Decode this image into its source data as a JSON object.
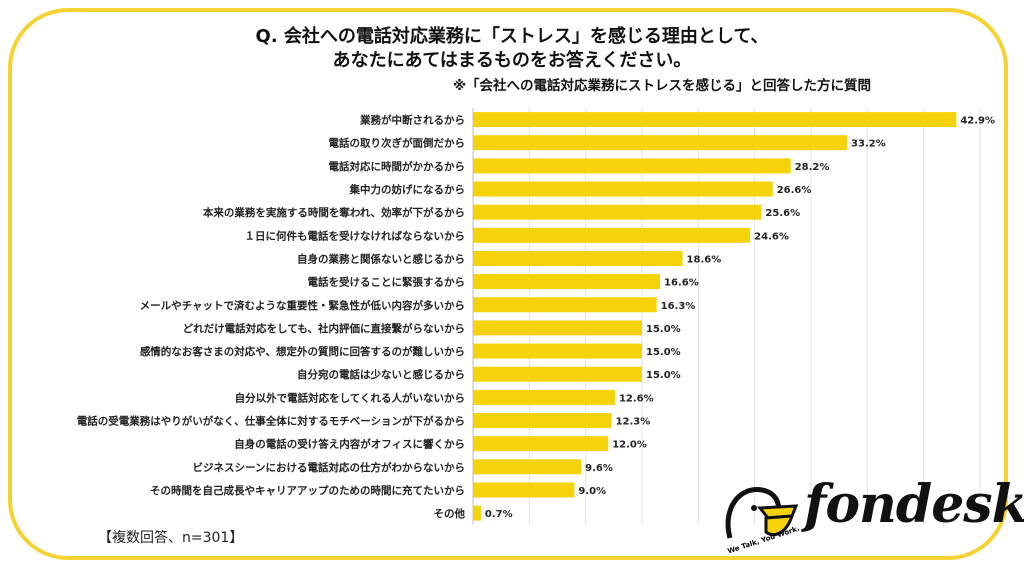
{
  "title_line1": "Q. 会社への電話対応業務に「ストレス」を感じる理由として、",
  "title_line2": "あなたにあてはまるものをお答えください。",
  "subtitle": "※「会社への電話対応業務にストレスを感じる」と回答した方に質問",
  "note": "【複数回答、n=301】",
  "logo": {
    "name": "fondesk",
    "tagline": "We Talk, You Work."
  },
  "chart_data": {
    "type": "bar",
    "orientation": "horizontal",
    "title": "Q. 会社への電話対応業務に「ストレス」を感じる理由として、あなたにあてはまるものをお答えください。",
    "xlim": [
      0,
      45
    ],
    "grid": true,
    "bar_color": "#f5d20a",
    "categories": [
      "業務が中断されるから",
      "電話の取り次ぎが面倒だから",
      "電話対応に時間がかかるから",
      "集中力の妨げになるから",
      "本来の業務を実施する時間を奪われ、効率が下がるから",
      "１日に何件も電話を受けなければならないから",
      "自身の業務と関係ないと感じるから",
      "電話を受けることに緊張するから",
      "メールやチャットで済むような重要性・緊急性が低い内容が多いから",
      "どれだけ電話対応をしても、社内評価に直接繋がらないから",
      "感情的なお客さまの対応や、想定外の質問に回答するのが難しいから",
      "自分宛の電話は少ないと感じるから",
      "自分以外で電話対応をしてくれる人がいないから",
      "電話の受電業務はやりがいがなく、仕事全体に対するモチベーションが下がるから",
      "自身の電話の受け答え内容がオフィスに響くから",
      "ビジネスシーンにおける電話対応の仕方がわからないから",
      "その時間を自己成長やキャリアアップのための時間に充てたいから",
      "その他"
    ],
    "values": [
      42.9,
      33.2,
      28.2,
      26.6,
      25.6,
      24.6,
      18.6,
      16.6,
      16.3,
      15.0,
      15.0,
      15.0,
      12.6,
      12.3,
      12.0,
      9.6,
      9.0,
      0.7
    ],
    "value_labels": [
      "42.9%",
      "33.2%",
      "28.2%",
      "26.6%",
      "25.6%",
      "24.6%",
      "18.6%",
      "16.6%",
      "16.3%",
      "15.0%",
      "15.0%",
      "15.0%",
      "12.6%",
      "12.3%",
      "12.0%",
      "9.6%",
      "9.0%",
      "0.7%"
    ]
  }
}
